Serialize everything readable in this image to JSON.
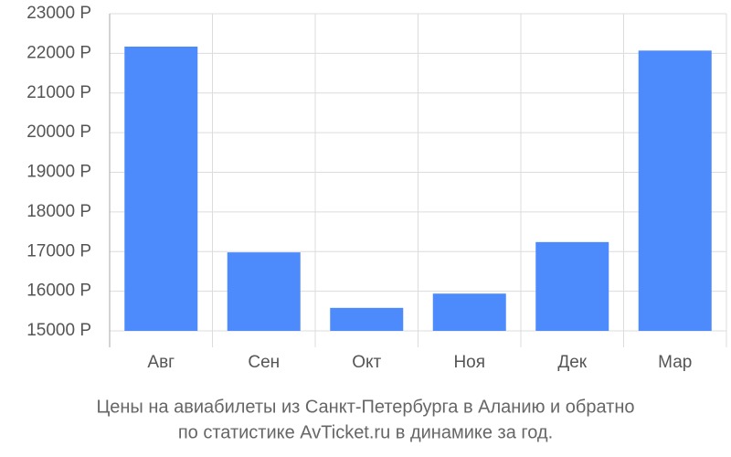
{
  "chart_data": {
    "type": "bar",
    "caption": [
      "Цены на авиабилеты из Санкт-Петербурга в Аланию и обратно",
      "по статистике AvTicket.ru в динамике за год."
    ],
    "categories": [
      "Авг",
      "Сен",
      "Окт",
      "Ноя",
      "Дек",
      "Мар"
    ],
    "values": [
      22170,
      16980,
      15580,
      15940,
      17240,
      22070
    ],
    "color": "#4d8bfc",
    "ylim": [
      15000,
      23000
    ],
    "yticks": [
      {
        "value": 15000,
        "label": "15000 Р"
      },
      {
        "value": 16000,
        "label": "16000 Р"
      },
      {
        "value": 17000,
        "label": "17000 Р"
      },
      {
        "value": 18000,
        "label": "18000 Р"
      },
      {
        "value": 19000,
        "label": "19000 Р"
      },
      {
        "value": 20000,
        "label": "20000 Р"
      },
      {
        "value": 21000,
        "label": "21000 Р"
      },
      {
        "value": 22000,
        "label": "22000 Р"
      },
      {
        "value": 23000,
        "label": "23000 Р"
      }
    ],
    "grid": true
  }
}
